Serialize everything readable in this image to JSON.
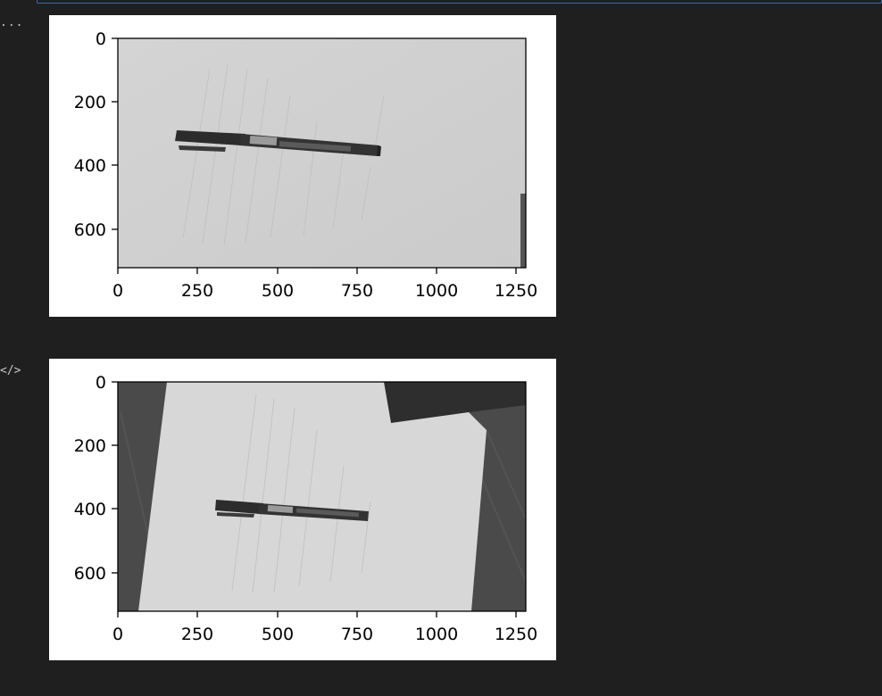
{
  "gutter": {
    "output_1_icon": "...",
    "output_2_icon": "</>"
  },
  "outputs": [
    {
      "chart_data": {
        "type": "image",
        "x_ticks": [
          "0",
          "250",
          "500",
          "750",
          "1000",
          "1250"
        ],
        "y_ticks": [
          "0",
          "200",
          "400",
          "600"
        ],
        "xlim": [
          0,
          1280
        ],
        "ylim": [
          720,
          0
        ],
        "image_size": [
          1280,
          720
        ],
        "image_description": "grayscale photo: black marker pen lying on a sheet of handwritten paper, almost filling the frame"
      }
    },
    {
      "chart_data": {
        "type": "image",
        "x_ticks": [
          "0",
          "250",
          "500",
          "750",
          "1000",
          "1250"
        ],
        "y_ticks": [
          "0",
          "200",
          "400",
          "600"
        ],
        "xlim": [
          0,
          1280
        ],
        "ylim": [
          720,
          0
        ],
        "image_size": [
          1280,
          720
        ],
        "image_description": "grayscale photo: black marker pen on a tilted sheet of paper over a dark wooden desk"
      }
    }
  ],
  "colors": {
    "background": "#1f1f1f",
    "focus_border": "#3b6aa8",
    "plot_background": "#ffffff"
  }
}
